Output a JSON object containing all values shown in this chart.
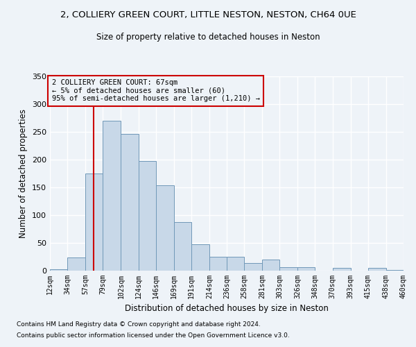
{
  "title": "2, COLLIERY GREEN COURT, LITTLE NESTON, NESTON, CH64 0UE",
  "subtitle": "Size of property relative to detached houses in Neston",
  "xlabel": "Distribution of detached houses by size in Neston",
  "ylabel": "Number of detached properties",
  "footnote1": "Contains HM Land Registry data © Crown copyright and database right 2024.",
  "footnote2": "Contains public sector information licensed under the Open Government Licence v3.0.",
  "annotation_line1": "2 COLLIERY GREEN COURT: 67sqm",
  "annotation_line2": "← 5% of detached houses are smaller (60)",
  "annotation_line3": "95% of semi-detached houses are larger (1,210) →",
  "bar_color": "#c8d8e8",
  "bar_edge_color": "#7098b8",
  "vline_color": "#cc0000",
  "vline_x": 67,
  "xlim": [
    12,
    460
  ],
  "ylim": [
    0,
    350
  ],
  "yticks": [
    0,
    50,
    100,
    150,
    200,
    250,
    300,
    350
  ],
  "xtick_labels": [
    "12sqm",
    "34sqm",
    "57sqm",
    "79sqm",
    "102sqm",
    "124sqm",
    "146sqm",
    "169sqm",
    "191sqm",
    "214sqm",
    "236sqm",
    "258sqm",
    "281sqm",
    "303sqm",
    "326sqm",
    "348sqm",
    "370sqm",
    "393sqm",
    "415sqm",
    "438sqm",
    "460sqm"
  ],
  "xtick_values": [
    12,
    34,
    57,
    79,
    102,
    124,
    146,
    169,
    191,
    214,
    236,
    258,
    281,
    303,
    326,
    348,
    370,
    393,
    415,
    438,
    460
  ],
  "bins": [
    12,
    34,
    57,
    79,
    102,
    124,
    146,
    169,
    191,
    214,
    236,
    258,
    281,
    303,
    326,
    348,
    370,
    393,
    415,
    438,
    460
  ],
  "bar_heights": [
    3,
    24,
    175,
    270,
    246,
    197,
    154,
    88,
    47,
    25,
    25,
    14,
    20,
    6,
    6,
    0,
    5,
    0,
    5,
    1
  ],
  "bg_color": "#eef3f8",
  "grid_color": "#ffffff"
}
